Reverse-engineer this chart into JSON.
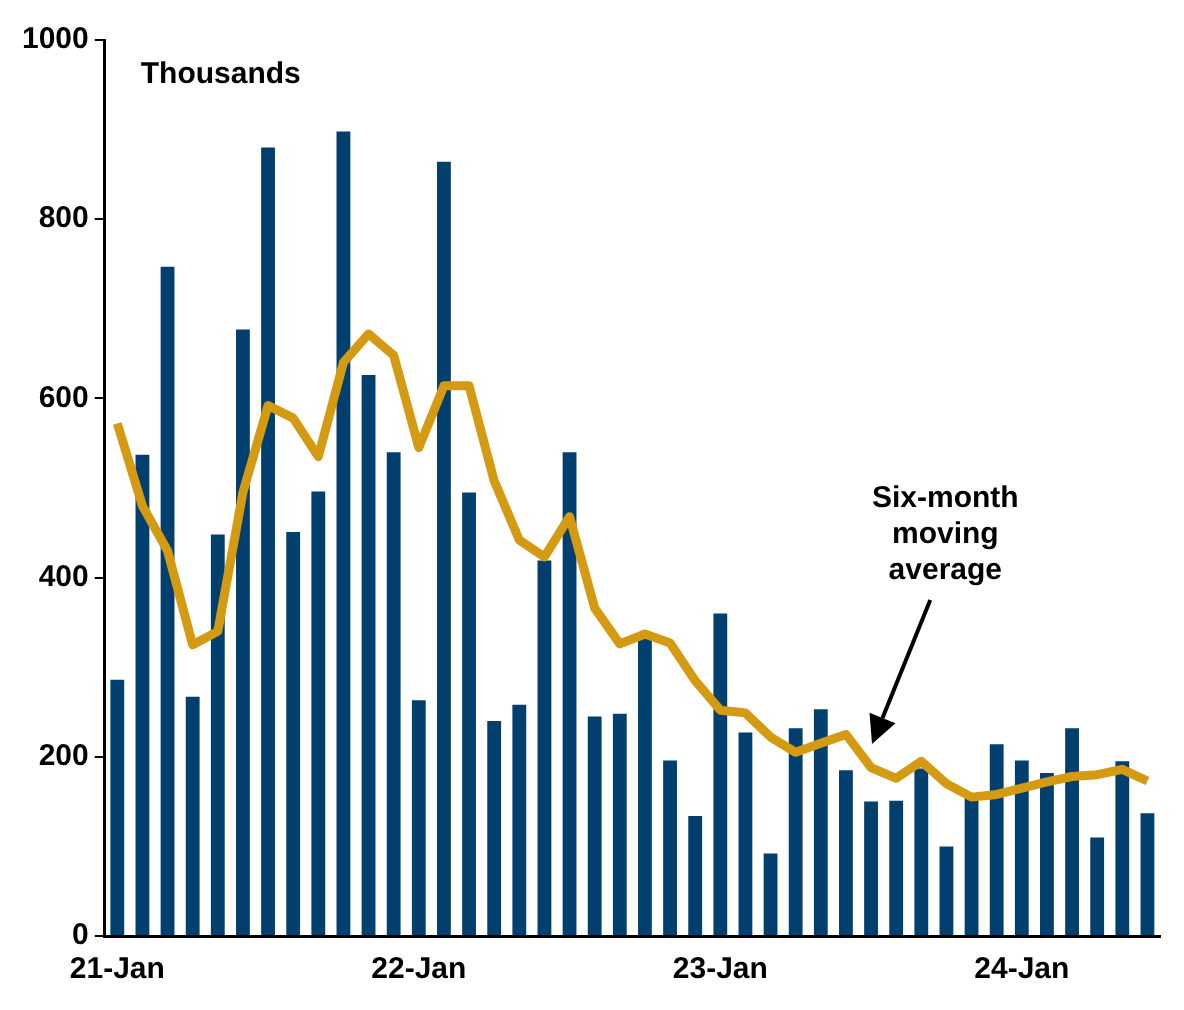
{
  "chart_data": {
    "type": "bar",
    "categories": [
      "21-Jan",
      null,
      null,
      null,
      null,
      null,
      null,
      null,
      null,
      null,
      null,
      null,
      "22-Jan",
      null,
      null,
      null,
      null,
      null,
      null,
      null,
      null,
      null,
      null,
      null,
      "23-Jan",
      null,
      null,
      null,
      null,
      null,
      null,
      null,
      null,
      null,
      null,
      null,
      "24-Jan",
      null,
      null,
      null,
      null,
      null
    ],
    "series": [
      {
        "color": "#003f6e",
        "values": [
          286,
          537,
          747,
          267,
          448,
          677,
          880,
          451,
          496,
          898,
          626,
          540,
          263,
          864,
          495,
          240,
          258,
          419,
          540,
          245,
          248,
          332,
          196,
          134,
          360,
          227,
          92,
          232,
          253,
          185,
          150,
          151,
          187,
          100,
          155,
          214,
          196,
          182,
          232,
          110,
          195,
          137
        ]
      },
      {
        "type": "line",
        "color": "#d49a12",
        "values": [
          572,
          480,
          430,
          325,
          340,
          495,
          592,
          578,
          535,
          640,
          672,
          648,
          545,
          614,
          614,
          508,
          442,
          423,
          468,
          366,
          326,
          337,
          327,
          285,
          252,
          249,
          222,
          205,
          215,
          225,
          188,
          176,
          195,
          170,
          155,
          158,
          165,
          172,
          178,
          180,
          186,
          173
        ]
      }
    ],
    "ylim": [
      0,
      1000
    ],
    "yticks": [
      0,
      200,
      400,
      600,
      800,
      1000
    ],
    "grid": false,
    "legend": false,
    "marker": "none",
    "annotations": [
      "Thousands",
      "Six-month moving average"
    ]
  }
}
